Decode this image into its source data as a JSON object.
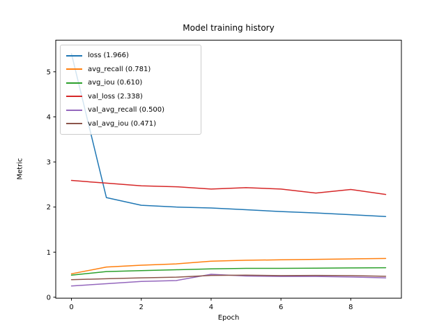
{
  "figure": {
    "title": "Model training history",
    "xlabel": "Epoch",
    "ylabel": "Metric"
  },
  "chart_data": {
    "type": "line",
    "title": "Model training history",
    "xlabel": "Epoch",
    "ylabel": "Metric",
    "x": [
      0,
      1,
      2,
      3,
      4,
      5,
      6,
      7,
      8,
      9
    ],
    "xlim": [
      -0.45,
      9.45
    ],
    "ylim": [
      -0.02,
      5.7
    ],
    "xticks": [
      0,
      2,
      4,
      6,
      8
    ],
    "yticks": [
      0,
      1,
      2,
      3,
      4,
      5
    ],
    "grid": false,
    "legend_position": "upper left",
    "background": "#ffffff",
    "spine_color": "#000000",
    "series": [
      {
        "name": "loss",
        "legend_label": "loss (1.966)",
        "color": "#1f77b4",
        "values": [
          5.4,
          2.21,
          2.04,
          2.0,
          1.98,
          1.94,
          1.9,
          1.87,
          1.83,
          1.79
        ]
      },
      {
        "name": "avg_recall",
        "legend_label": "avg_recall (0.781)",
        "color": "#ff7f0e",
        "values": [
          0.52,
          0.67,
          0.71,
          0.74,
          0.8,
          0.82,
          0.83,
          0.84,
          0.85,
          0.86
        ]
      },
      {
        "name": "avg_iou",
        "legend_label": "avg_iou (0.610)",
        "color": "#2ca02c",
        "values": [
          0.49,
          0.57,
          0.59,
          0.61,
          0.63,
          0.64,
          0.64,
          0.645,
          0.65,
          0.655
        ]
      },
      {
        "name": "val_loss",
        "legend_label": "val_loss (2.338)",
        "color": "#d62728",
        "values": [
          2.59,
          2.53,
          2.47,
          2.45,
          2.4,
          2.43,
          2.4,
          2.31,
          2.39,
          2.28
        ]
      },
      {
        "name": "val_avg_recall",
        "legend_label": "val_avg_recall (0.500)",
        "color": "#9467bd",
        "values": [
          0.25,
          0.3,
          0.35,
          0.37,
          0.51,
          0.47,
          0.46,
          0.46,
          0.45,
          0.43
        ]
      },
      {
        "name": "val_avg_iou",
        "legend_label": "val_avg_iou (0.471)",
        "color": "#8c564b",
        "values": [
          0.39,
          0.41,
          0.43,
          0.445,
          0.485,
          0.49,
          0.48,
          0.485,
          0.48,
          0.465
        ]
      }
    ]
  }
}
